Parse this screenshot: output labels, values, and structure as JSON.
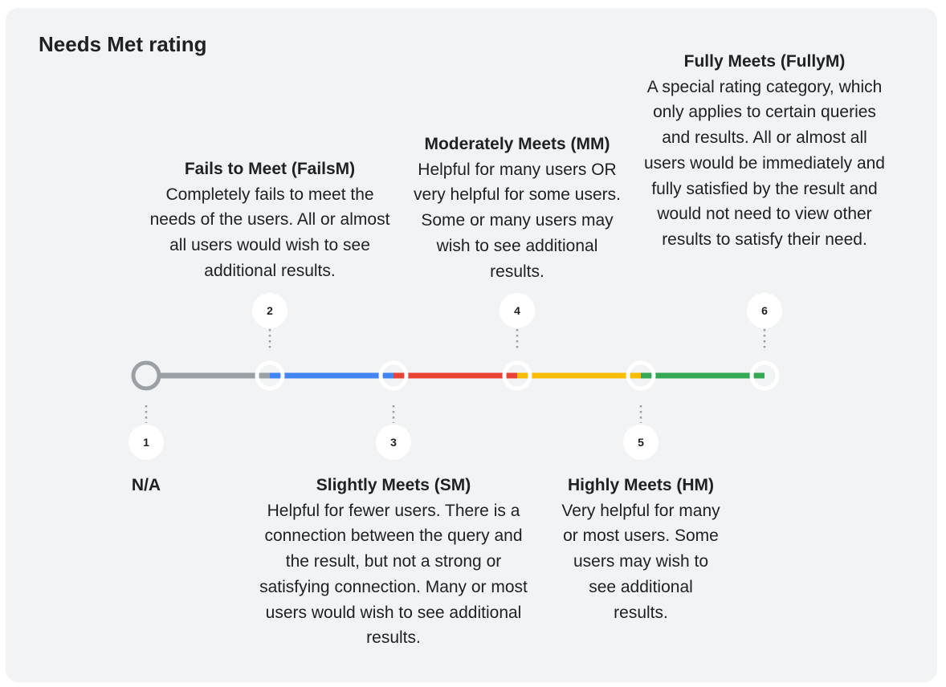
{
  "title": "Needs Met rating",
  "colors": {
    "na": "#9aa0a6",
    "failsm": "#4285f4",
    "sm": "#ea4335",
    "mm": "#fbbc04",
    "hm": "#34a853",
    "card": "#f1f3f4"
  },
  "points": [
    {
      "number": "1",
      "heading": "N/A",
      "body": ""
    },
    {
      "number": "2",
      "heading": "Fails to Meet (FailsM)",
      "body": "Completely fails to meet the needs of the users. All or almost all users would wish to see additional results."
    },
    {
      "number": "3",
      "heading": "Slightly Meets (SM)",
      "body": "Helpful for fewer users. There is a connection between the query and the result, but not a strong or satisfying connection. Many or most users would wish to see additional results."
    },
    {
      "number": "4",
      "heading": "Moderately Meets (MM)",
      "body": "Helpful for many users OR very helpful for some users. Some or many users may wish to see additional results."
    },
    {
      "number": "5",
      "heading": "Highly Meets (HM)",
      "body": "Very helpful for many or most users. Some users may wish to see additional results."
    },
    {
      "number": "6",
      "heading": "Fully Meets (FullyM)",
      "body": "A special rating category, which only applies to certain queries and results. All or almost all users would be immediately and fully satisfied by the result and would not need to view other results to satisfy their need."
    }
  ]
}
